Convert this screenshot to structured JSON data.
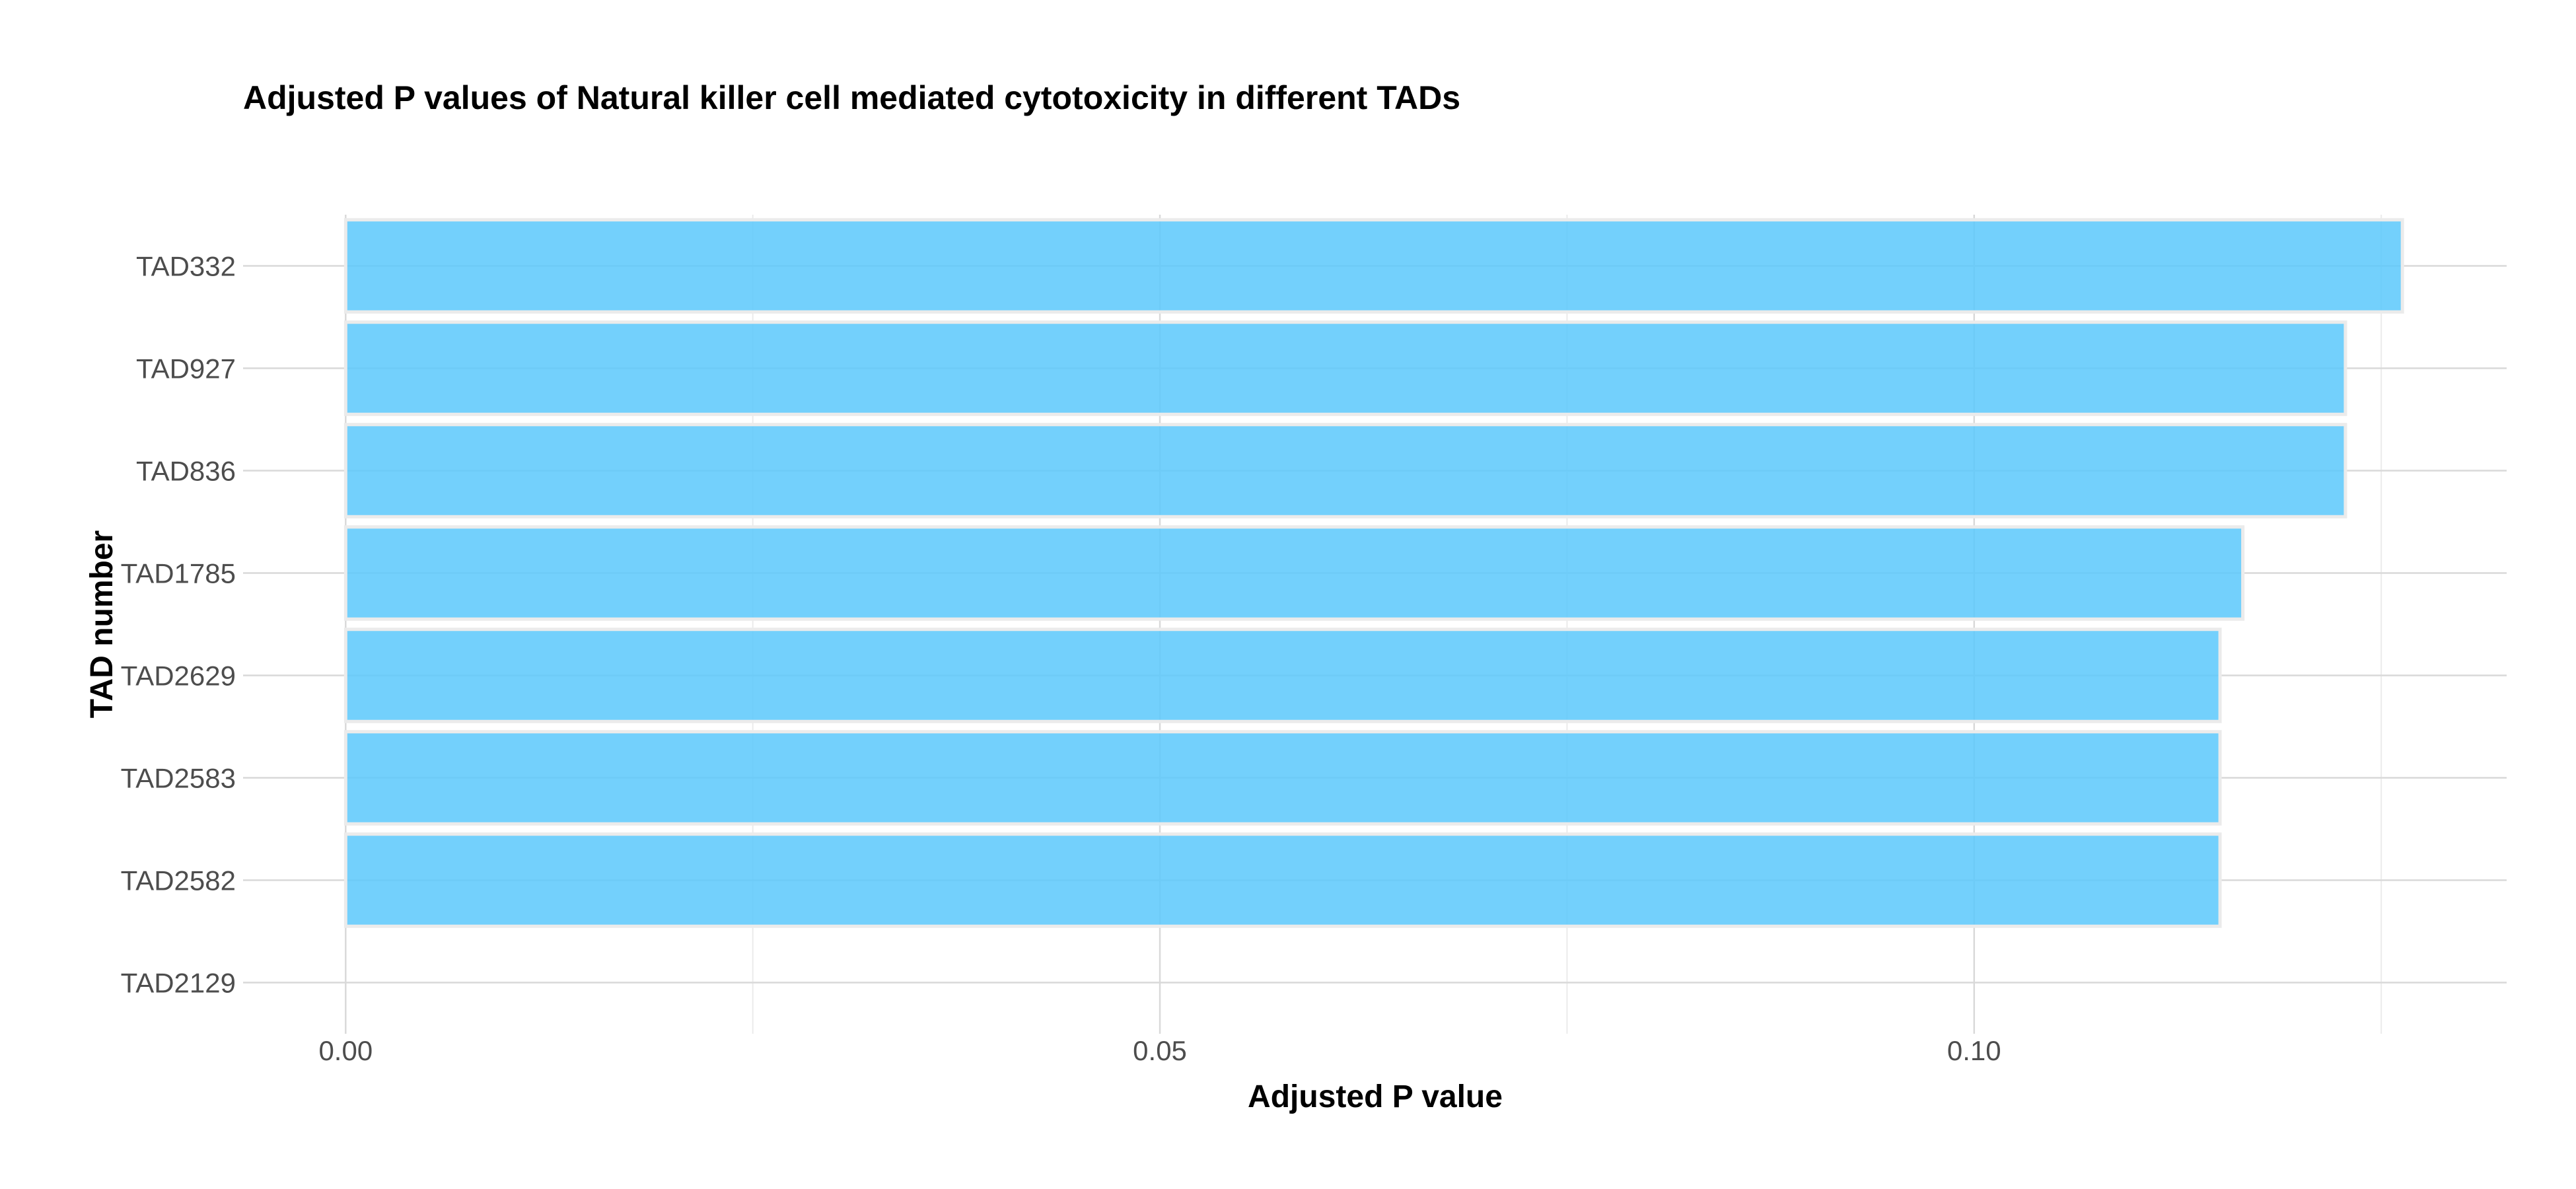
{
  "chart_data": {
    "type": "bar",
    "orientation": "horizontal",
    "title": "Adjusted P values of Natural killer cell mediated cytotoxicity in different TADs",
    "xlabel": "Adjusted P value",
    "ylabel": "TAD number",
    "categories": [
      "TAD332",
      "TAD927",
      "TAD836",
      "TAD1785",
      "TAD2629",
      "TAD2583",
      "TAD2582",
      "TAD2129"
    ],
    "values": [
      0.1263,
      0.1228,
      0.1228,
      0.1165,
      0.1151,
      0.1151,
      0.1151,
      0.0
    ],
    "xlim": [
      -0.0063,
      0.1327
    ],
    "xticks": [
      0.0,
      0.05,
      0.1
    ],
    "xtick_labels": [
      "0.00",
      "0.05",
      "0.10"
    ],
    "grid": true,
    "legend": "none",
    "bar_color": "#5BC8FB"
  }
}
